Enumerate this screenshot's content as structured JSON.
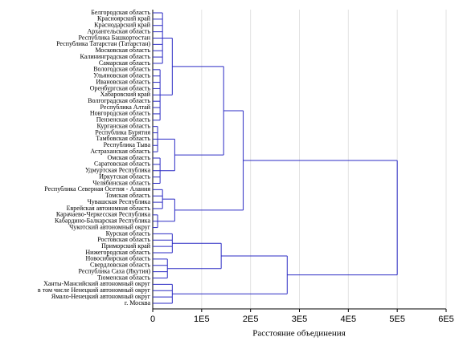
{
  "chart_data": {
    "type": "dendrogram",
    "x_label": "Расстояние объединения",
    "color": "#2b2bc4",
    "grid": true,
    "xlim": [
      0,
      600000
    ],
    "xticks": [
      {
        "value": 0,
        "label": "0"
      },
      {
        "value": 100000,
        "label": "1E5"
      },
      {
        "value": 200000,
        "label": "2E5"
      },
      {
        "value": 300000,
        "label": "3E5"
      },
      {
        "value": 400000,
        "label": "4E5"
      },
      {
        "value": 500000,
        "label": "5E5"
      },
      {
        "value": 600000,
        "label": "6E5"
      }
    ],
    "tree": {
      "height": 500000,
      "children": [
        {
          "height": 185000,
          "children": [
            {
              "height": 145000,
              "children": [
                {
                  "height": 40000,
                  "children": [
                    {
                      "height": 20000,
                      "children": [
                        {
                          "label": "Белгородская область"
                        },
                        {
                          "label": "Красноярский край"
                        },
                        {
                          "label": "Краснодарский край"
                        },
                        {
                          "label": "Архангельская область"
                        },
                        {
                          "label": "Республика Башкортостан"
                        },
                        {
                          "label": "Республика Татарстан (Татарстан)"
                        },
                        {
                          "label": "Московская область"
                        },
                        {
                          "label": "Калининградская область"
                        },
                        {
                          "label": "Самарская область"
                        }
                      ]
                    },
                    {
                      "height": 15000,
                      "children": [
                        {
                          "label": "Вологодская область"
                        },
                        {
                          "label": "Ульяновская область"
                        },
                        {
                          "label": "Ивановская область"
                        },
                        {
                          "label": "Оренбургская область"
                        },
                        {
                          "label": "Хабаровский край"
                        },
                        {
                          "label": "Волгоградская область"
                        },
                        {
                          "label": "Республика Алтай"
                        },
                        {
                          "label": "Новгородская область"
                        },
                        {
                          "label": "Пензенская область"
                        }
                      ]
                    }
                  ]
                },
                {
                  "height": 45000,
                  "children": [
                    {
                      "height": 10000,
                      "children": [
                        {
                          "label": "Курганская область"
                        },
                        {
                          "label": "Республика Бурятия"
                        },
                        {
                          "label": "Тамбовская область"
                        },
                        {
                          "label": "Республика Тыва"
                        },
                        {
                          "label": "Астраханская область"
                        }
                      ]
                    },
                    {
                      "height": 15000,
                      "children": [
                        {
                          "label": "Омская область"
                        },
                        {
                          "label": "Саратовская область"
                        },
                        {
                          "label": "Удмуртская Республика"
                        },
                        {
                          "label": "Иркутская область"
                        },
                        {
                          "label": "Челябинская область"
                        }
                      ]
                    }
                  ]
                }
              ]
            },
            {
              "height": 45000,
              "children": [
                {
                  "height": 20000,
                  "children": [
                    {
                      "label": "Республика Северная Осетия - Алания"
                    },
                    {
                      "label": "Томская область"
                    },
                    {
                      "label": "Чувашская Республика"
                    },
                    {
                      "label": "Еврейская автономная область"
                    }
                  ]
                },
                {
                  "height": 10000,
                  "children": [
                    {
                      "label": "Карачаево-Черкесская Республика"
                    },
                    {
                      "label": "Кабардино-Балкарская Республика"
                    },
                    {
                      "label": "Чукотский автономный округ"
                    }
                  ]
                }
              ]
            }
          ]
        },
        {
          "height": 275000,
          "children": [
            {
              "height": 140000,
              "children": [
                {
                  "height": 40000,
                  "children": [
                    {
                      "label": "Курская область"
                    },
                    {
                      "label": "Ростовская область"
                    },
                    {
                      "label": "Приморский край"
                    },
                    {
                      "label": "Нижегородская область"
                    }
                  ]
                },
                {
                  "height": 30000,
                  "children": [
                    {
                      "label": "Новосибирская область"
                    },
                    {
                      "label": "Свердловская область"
                    },
                    {
                      "label": "Республика Саха (Якутия)"
                    },
                    {
                      "label": "Тюменская область"
                    }
                  ]
                }
              ]
            },
            {
              "height": 40000,
              "children": [
                {
                  "label": "Ханты-Мансийский автономный округ"
                },
                {
                  "label": "в том числе Ненецкий автономный округ"
                },
                {
                  "label": "Ямало-Ненецкий автономный округ"
                },
                {
                  "label": "г. Москва"
                }
              ]
            }
          ]
        }
      ]
    }
  }
}
